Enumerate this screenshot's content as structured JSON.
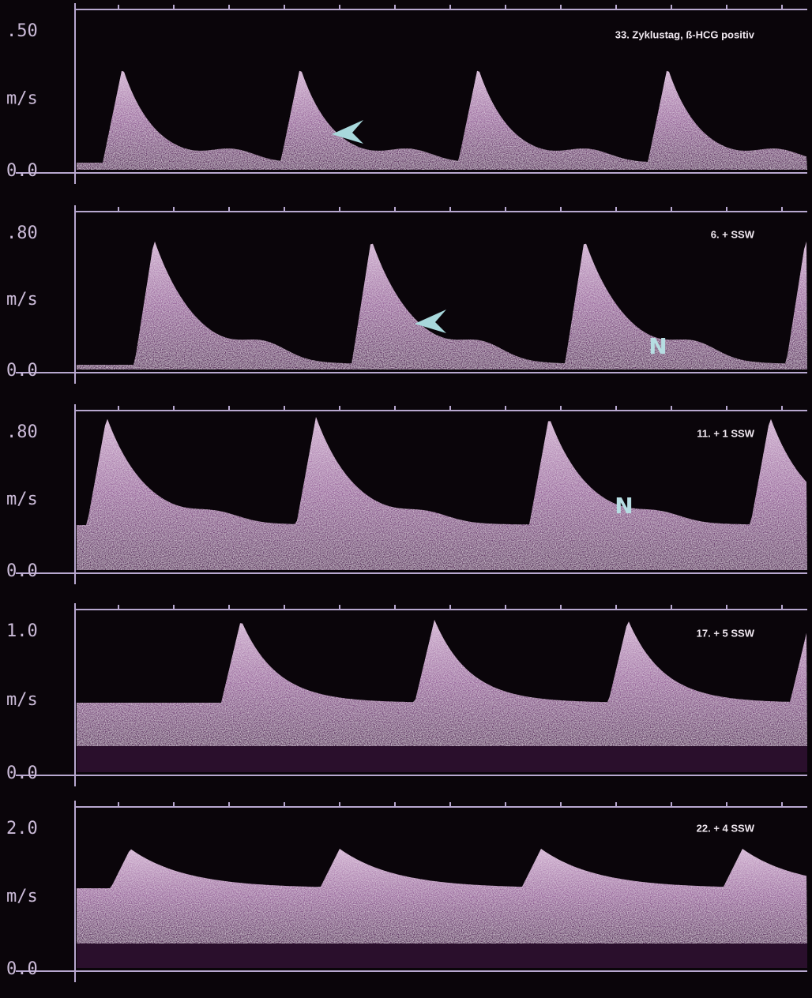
{
  "panels": [
    {
      "y_max_label": ".50",
      "unit_label": "m/s",
      "y_min_label": "0.0",
      "caption": "33. Zyklustag, ß-HCG positiv"
    },
    {
      "y_max_label": ".80",
      "unit_label": "m/s",
      "y_min_label": "0.0",
      "caption": "6. + SSW",
      "marker": "N"
    },
    {
      "y_max_label": ".80",
      "unit_label": "m/s",
      "y_min_label": "0.0",
      "caption": "11. + 1 SSW",
      "marker": "N"
    },
    {
      "y_max_label": "1.0",
      "unit_label": "m/s",
      "y_min_label": "0.0",
      "caption": "17. + 5 SSW"
    },
    {
      "y_max_label": "2.0",
      "unit_label": "m/s",
      "y_min_label": "0.0",
      "caption": "22. + 4 SSW"
    }
  ]
}
